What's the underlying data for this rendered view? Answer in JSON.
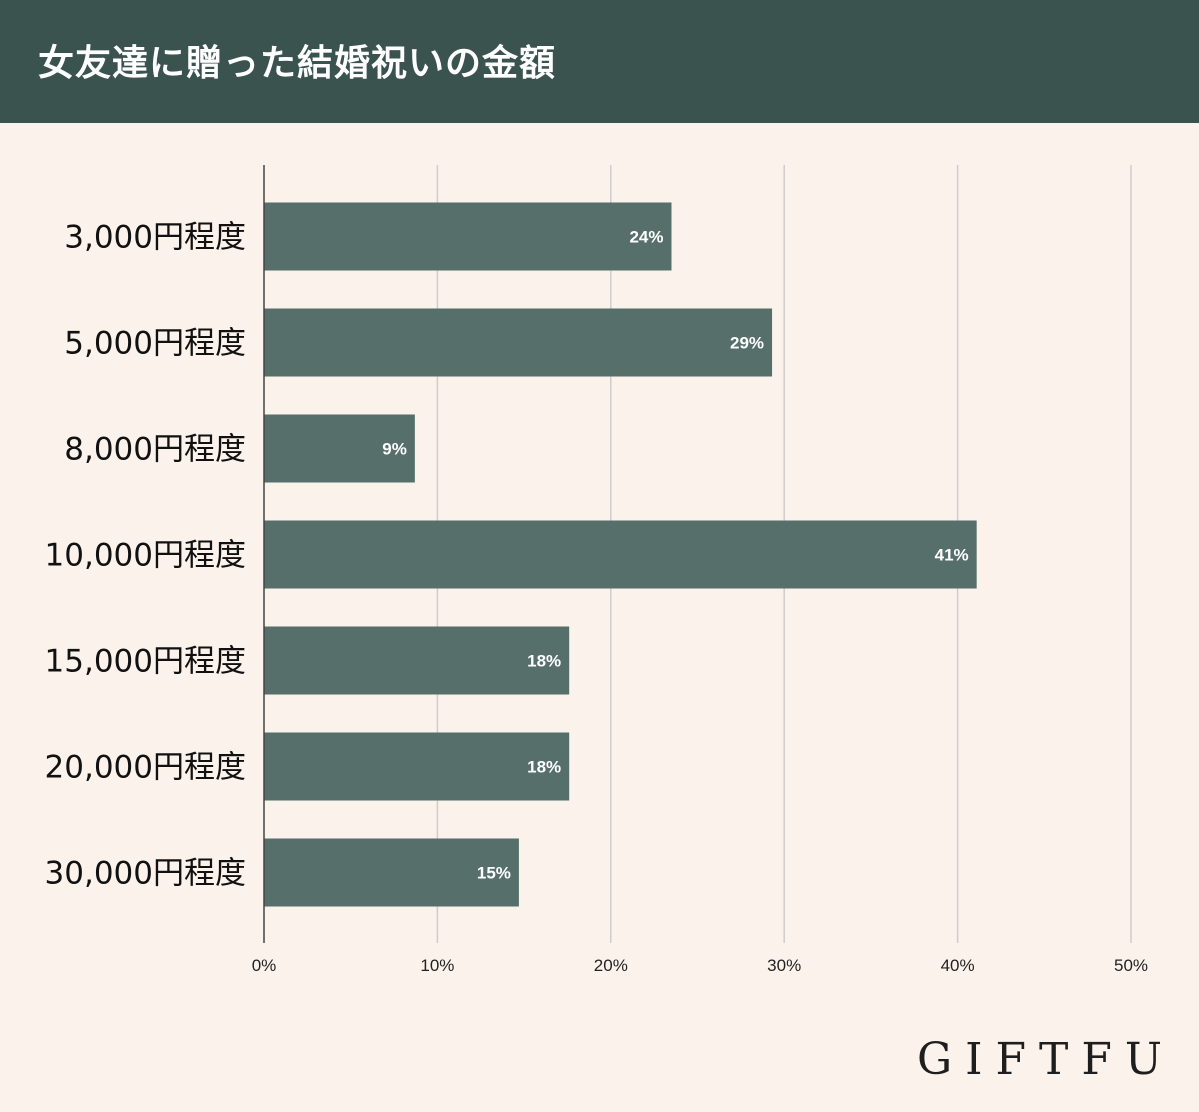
{
  "header": {
    "title": "女友達に贈った結婚祝いの金額"
  },
  "colors": {
    "header_bg": "#3A534F",
    "page_bg": "#FBF2EC",
    "bar": "#566F6B",
    "grid": "#D0CCCA",
    "axis": "#444444",
    "logo_accent": "#E9C9A8"
  },
  "chart_data": {
    "type": "bar",
    "orientation": "horizontal",
    "title": "女友達に贈った結婚祝いの金額",
    "categories": [
      "3,000円程度",
      "5,000円程度",
      "8,000円程度",
      "10,000円程度",
      "15,000円程度",
      "20,000円程度",
      "30,000円程度"
    ],
    "values": [
      23.5,
      29.3,
      8.7,
      41.1,
      17.6,
      17.6,
      14.7
    ],
    "data_labels": [
      "24%",
      "29%",
      "9%",
      "41%",
      "18%",
      "18%",
      "15%"
    ],
    "xlim": [
      0,
      50
    ],
    "xticks": [
      0,
      10,
      20,
      30,
      40,
      50
    ],
    "xtick_labels": [
      "0%",
      "10%",
      "20%",
      "30%",
      "40%",
      "50%"
    ],
    "xlabel": "",
    "ylabel": "",
    "grid": "vertical",
    "legend": "none"
  },
  "brand": {
    "logo_text": "GIFTFUL"
  }
}
